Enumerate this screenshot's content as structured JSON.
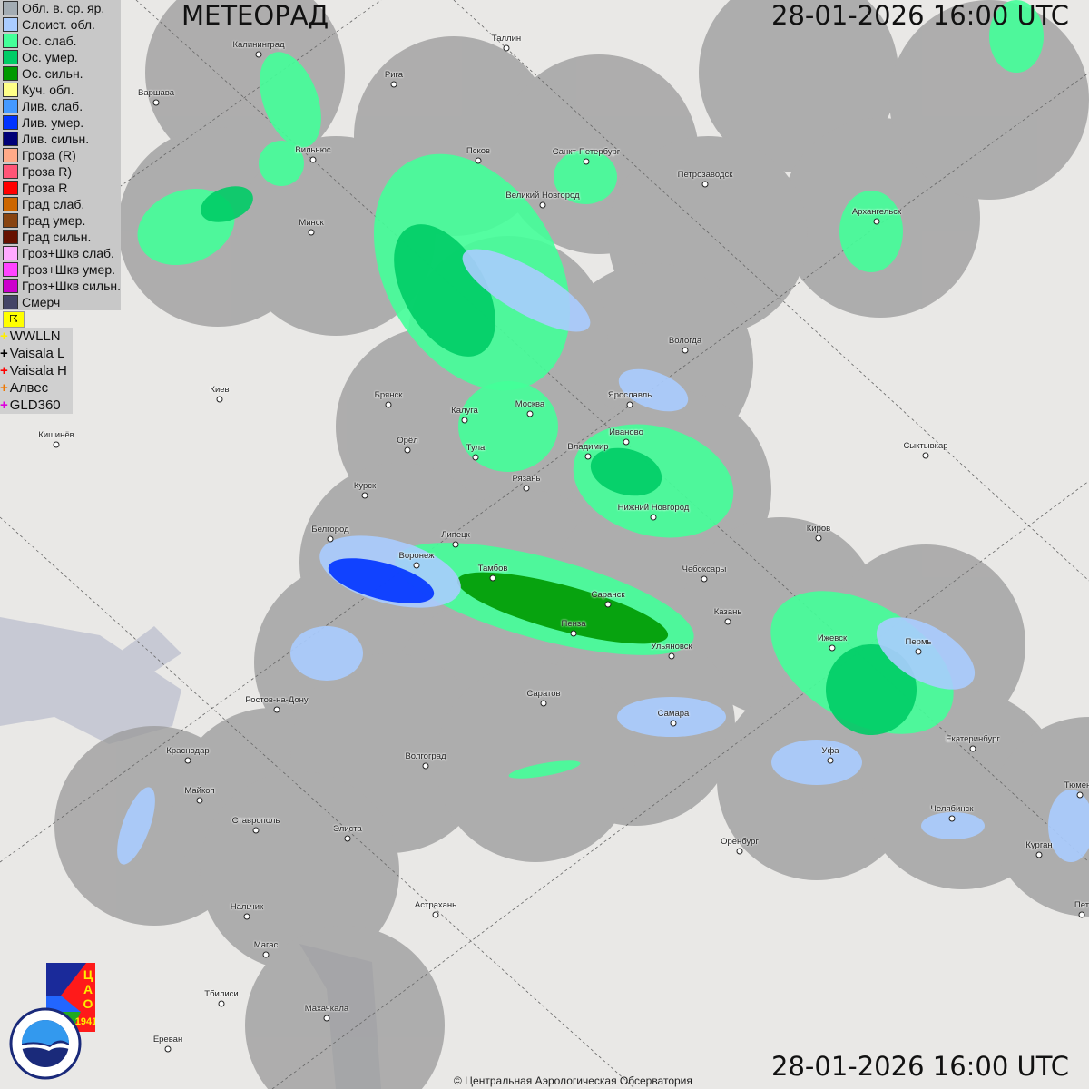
{
  "header": {
    "title": "МЕТЕОРАД",
    "timestamp": "28-01-2026  16:00 UTC"
  },
  "footer": {
    "timestamp": "28-01-2026  16:00 UTC",
    "copyright": "© Центральная Аэрологическая Обсерватория"
  },
  "legend": [
    {
      "label": "Обл. в. ср. яр.",
      "color": "#a3acb3"
    },
    {
      "label": "Слоист. обл.",
      "color": "#aaccff"
    },
    {
      "label": "Ос. слаб.",
      "color": "#44ff99"
    },
    {
      "label": "Ос. умер.",
      "color": "#00cc66"
    },
    {
      "label": "Ос. сильн.",
      "color": "#009900"
    },
    {
      "label": "Куч. обл.",
      "color": "#ffff88"
    },
    {
      "label": "Лив. слаб.",
      "color": "#4499ff"
    },
    {
      "label": "Лив. умер.",
      "color": "#0033ff"
    },
    {
      "label": "Лив. сильн.",
      "color": "#000077"
    },
    {
      "label": "Гроза (R)",
      "color": "#ffaa88"
    },
    {
      "label": "Гроза R)",
      "color": "#ff5577"
    },
    {
      "label": "Гроза R",
      "color": "#ff0000"
    },
    {
      "label": "Град слаб.",
      "color": "#cc6600"
    },
    {
      "label": "Град умер.",
      "color": "#884411"
    },
    {
      "label": "Град сильн.",
      "color": "#661100"
    },
    {
      "label": "Гроз+Шкв слаб.",
      "color": "#ffaaff"
    },
    {
      "label": "Гроз+Шкв умер.",
      "color": "#ff44ff"
    },
    {
      "label": "Гроз+Шкв сильн.",
      "color": "#cc00cc"
    },
    {
      "label": "Смерч",
      "color": "#444466"
    }
  ],
  "lightning_flag": "☈",
  "sensors": [
    {
      "label": "WWLLN",
      "color": "#ffee00"
    },
    {
      "label": "Vaisala L",
      "color": "#000000"
    },
    {
      "label": "Vaisala H",
      "color": "#ff0000"
    },
    {
      "label": "Алвес",
      "color": "#ee7700"
    },
    {
      "label": "GLD360",
      "color": "#dd00dd"
    }
  ],
  "cities": [
    "Калининград",
    "Рига",
    "Таллин",
    "Варшава",
    "Вильнюс",
    "Псков",
    "Санкт-Петербург",
    "Петрозаводск",
    "Великий Новгород",
    "Архангельск",
    "Минск",
    "Вологда",
    "Киев",
    "Брянск",
    "Калуга",
    "Москва",
    "Ярославль",
    "Иваново",
    "Владимир",
    "Тула",
    "Орёл",
    "Сыктывкар",
    "Кишинёв",
    "Рязань",
    "Курск",
    "Нижний Новгород",
    "Киров",
    "Белгород",
    "Липецк",
    "Воронеж",
    "Тамбов",
    "Чебоксары",
    "Саранск",
    "Казань",
    "Пенза",
    "Ижевск",
    "Пермь",
    "Ульяновск",
    "Ростов-на-Дону",
    "Саратов",
    "Самара",
    "Екатеринбург",
    "Уфа",
    "Краснодар",
    "Волгоград",
    "Майкоп",
    "Тюмень",
    "Челябинск",
    "Ставрополь",
    "Элиста",
    "Оренбург",
    "Курган",
    "Астрахань",
    "Нальчик",
    "Пет",
    "Магас",
    "Махачкала",
    "Тбилиси",
    "Ереван"
  ],
  "logos": {
    "cao": "ЦАО 1941",
    "roshydromet": "РОСГИДРОМЕТ ROSHYDROMET"
  },
  "colors": {
    "radar_coverage": "#9a9a9a",
    "map_background": "#e9e8e6"
  }
}
